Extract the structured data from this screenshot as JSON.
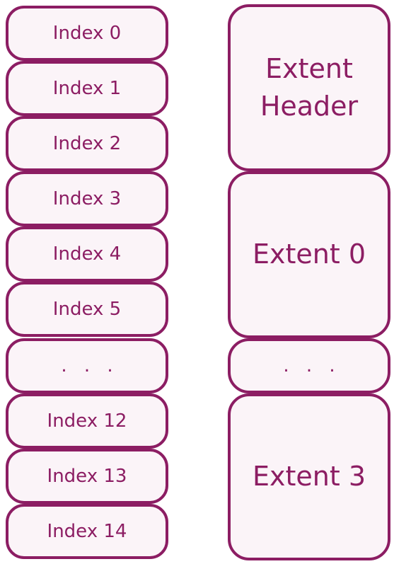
{
  "colors": {
    "border": "#8c1d63",
    "fill": "#fbf4f8",
    "text": "#8c1d63"
  },
  "index_column": [
    {
      "label": "Index 0"
    },
    {
      "label": "Index 1"
    },
    {
      "label": "Index 2"
    },
    {
      "label": "Index 3"
    },
    {
      "label": "Index 4"
    },
    {
      "label": "Index 5"
    },
    {
      "label": ". . ."
    },
    {
      "label": "Index 12"
    },
    {
      "label": "Index 13"
    },
    {
      "label": "Index 14"
    }
  ],
  "extent_column": [
    {
      "label": "Extent Header"
    },
    {
      "label": "Extent 0"
    },
    {
      "label": ". . ."
    },
    {
      "label": "Extent 3"
    }
  ]
}
